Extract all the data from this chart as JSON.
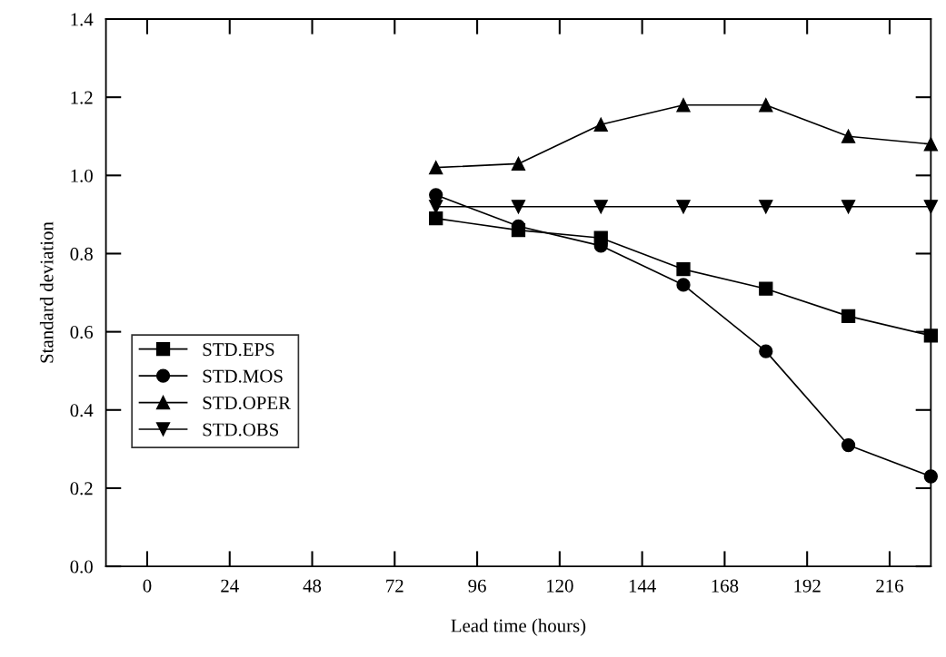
{
  "chart_data": {
    "type": "line",
    "xlabel": "Lead time (hours)",
    "ylabel": "Standard deviation",
    "x": [
      84,
      108,
      132,
      156,
      180,
      204,
      228
    ],
    "xlim": [
      -12,
      228
    ],
    "xticks": [
      0,
      24,
      48,
      72,
      96,
      120,
      144,
      168,
      192,
      216
    ],
    "ylim": [
      0,
      1.4
    ],
    "yticks": [
      {
        "value": 0,
        "label": "0.0"
      },
      0.2,
      0.4,
      0.6,
      0.8,
      {
        "value": 1,
        "label": "1.0"
      },
      1.2,
      1.4
    ],
    "grid": false,
    "legend": "bottom left",
    "line_style": "solid",
    "series": [
      {
        "name": "STD.EPS",
        "color": "#000000",
        "marker": "square",
        "values": [
          0.89,
          0.86,
          0.84,
          0.76,
          0.71,
          0.64,
          0.59
        ]
      },
      {
        "name": "STD.MOS",
        "color": "#000000",
        "marker": "circle",
        "values": [
          0.95,
          0.87,
          0.82,
          0.72,
          0.55,
          0.31,
          0.23
        ]
      },
      {
        "name": "STD.OPER",
        "color": "#000000",
        "marker": "triangle",
        "values": [
          1.02,
          1.03,
          1.13,
          1.18,
          1.18,
          1.1,
          1.08
        ]
      },
      {
        "name": "STD.OBS",
        "color": "#000000",
        "marker": "triangle_down",
        "values": [
          0.92,
          0.92,
          0.92,
          0.92,
          0.92,
          0.92,
          0.92
        ]
      }
    ]
  }
}
